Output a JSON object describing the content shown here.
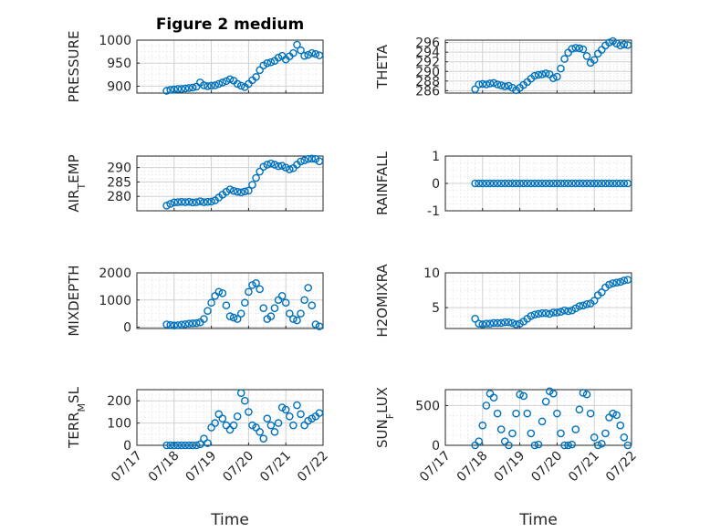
{
  "figure_title": "Figure 2 medium",
  "x_axis_label": "Time",
  "x_tick_labels": [
    "07/17",
    "07/18",
    "07/19",
    "07/20",
    "07/21",
    "07/22"
  ],
  "marker_color": "#0072bd",
  "chart_data": [
    {
      "type": "scatter",
      "name": "PRESSURE",
      "ylabel": "PRESSURE",
      "ylim": [
        885,
        1000
      ],
      "yticks": [
        900,
        950,
        1000
      ],
      "title": "Figure 2 medium",
      "xlabel": "",
      "x": [
        17.8,
        17.9,
        18.0,
        18.1,
        18.2,
        18.3,
        18.4,
        18.5,
        18.6,
        18.7,
        18.8,
        18.9,
        19.0,
        19.1,
        19.2,
        19.3,
        19.4,
        19.5,
        19.6,
        19.7,
        19.8,
        19.9,
        20.0,
        20.1,
        20.2,
        20.3,
        20.4,
        20.5,
        20.6,
        20.7,
        20.8,
        20.9,
        21.0,
        21.1,
        21.2,
        21.3,
        21.4,
        21.5,
        21.6,
        21.7,
        21.8,
        21.9
      ],
      "y": [
        890,
        892,
        893,
        894,
        894,
        895,
        896,
        897,
        899,
        908,
        902,
        900,
        901,
        902,
        905,
        908,
        911,
        915,
        912,
        905,
        901,
        898,
        905,
        913,
        920,
        935,
        945,
        950,
        952,
        955,
        962,
        966,
        958,
        965,
        972,
        990,
        978,
        966,
        968,
        972,
        970,
        967
      ]
    },
    {
      "type": "scatter",
      "name": "THETA",
      "ylabel": "THETA",
      "ylim": [
        285.5,
        296.5
      ],
      "yticks": [
        286,
        288,
        290,
        292,
        294,
        296
      ],
      "x": [
        17.8,
        17.9,
        18.0,
        18.1,
        18.2,
        18.3,
        18.4,
        18.5,
        18.6,
        18.7,
        18.8,
        18.9,
        19.0,
        19.1,
        19.2,
        19.3,
        19.4,
        19.5,
        19.6,
        19.7,
        19.8,
        19.9,
        20.0,
        20.1,
        20.2,
        20.3,
        20.4,
        20.5,
        20.6,
        20.7,
        20.8,
        20.9,
        21.0,
        21.1,
        21.2,
        21.3,
        21.4,
        21.5,
        21.6,
        21.7,
        21.8,
        21.9
      ],
      "y": [
        286.3,
        287.3,
        287.4,
        287.3,
        287.5,
        287.6,
        287.3,
        287.1,
        286.9,
        287.0,
        286.6,
        286.1,
        286.6,
        287.2,
        287.8,
        288.5,
        289.1,
        289.3,
        289.4,
        289.6,
        289.4,
        288.6,
        288.9,
        290.6,
        292.6,
        293.9,
        294.7,
        294.9,
        294.8,
        294.6,
        293.2,
        291.8,
        292.4,
        293.7,
        294.5,
        295.4,
        296.0,
        296.3,
        295.8,
        295.4,
        295.6,
        295.5
      ]
    },
    {
      "type": "scatter",
      "name": "AIR_TEMP",
      "ylabel": "AIR_TEMP",
      "ylim": [
        275,
        294
      ],
      "yticks": [
        280,
        285,
        290
      ],
      "x": [
        17.8,
        17.9,
        18.0,
        18.1,
        18.2,
        18.3,
        18.4,
        18.5,
        18.6,
        18.7,
        18.8,
        18.9,
        19.0,
        19.1,
        19.2,
        19.3,
        19.4,
        19.5,
        19.6,
        19.7,
        19.8,
        19.9,
        20.0,
        20.1,
        20.2,
        20.3,
        20.4,
        20.5,
        20.6,
        20.7,
        20.8,
        20.9,
        21.0,
        21.1,
        21.2,
        21.3,
        21.4,
        21.5,
        21.6,
        21.7,
        21.8,
        21.9
      ],
      "y": [
        276.8,
        277.4,
        277.9,
        278.0,
        278.1,
        278.0,
        278.1,
        277.9,
        278.0,
        278.3,
        278.0,
        278.1,
        278.2,
        278.6,
        279.6,
        280.6,
        281.6,
        282.4,
        281.9,
        281.6,
        281.4,
        281.7,
        282.0,
        284.0,
        286.4,
        288.6,
        290.3,
        291.0,
        291.4,
        291.0,
        290.5,
        290.6,
        290.0,
        289.4,
        289.8,
        291.0,
        292.1,
        292.5,
        293.0,
        293.1,
        293.0,
        292.2
      ]
    },
    {
      "type": "scatter",
      "name": "RAINFALL",
      "ylabel": "RAINFALL",
      "ylim": [
        -1,
        1
      ],
      "yticks": [
        -1,
        0,
        1
      ],
      "x": [
        17.8,
        17.9,
        18.0,
        18.1,
        18.2,
        18.3,
        18.4,
        18.5,
        18.6,
        18.7,
        18.8,
        18.9,
        19.0,
        19.1,
        19.2,
        19.3,
        19.4,
        19.5,
        19.6,
        19.7,
        19.8,
        19.9,
        20.0,
        20.1,
        20.2,
        20.3,
        20.4,
        20.5,
        20.6,
        20.7,
        20.8,
        20.9,
        21.0,
        21.1,
        21.2,
        21.3,
        21.4,
        21.5,
        21.6,
        21.7,
        21.8,
        21.9
      ],
      "y": [
        0,
        0,
        0,
        0,
        0,
        0,
        0,
        0,
        0,
        0,
        0,
        0,
        0,
        0,
        0,
        0,
        0,
        0,
        0,
        0,
        0,
        0,
        0,
        0,
        0,
        0,
        0,
        0,
        0,
        0,
        0,
        0,
        0,
        0,
        0,
        0,
        0,
        0,
        0,
        0,
        0,
        0
      ]
    },
    {
      "type": "scatter",
      "name": "MIXDEPTH",
      "ylabel": "MIXDEPTH",
      "ylim": [
        -50,
        2000
      ],
      "yticks": [
        0,
        1000,
        2000
      ],
      "x": [
        17.8,
        17.9,
        18.0,
        18.1,
        18.2,
        18.3,
        18.4,
        18.5,
        18.6,
        18.7,
        18.8,
        18.9,
        19.0,
        19.1,
        19.2,
        19.3,
        19.4,
        19.5,
        19.6,
        19.7,
        19.8,
        19.9,
        20.0,
        20.1,
        20.2,
        20.3,
        20.4,
        20.5,
        20.6,
        20.7,
        20.8,
        20.9,
        21.0,
        21.1,
        21.2,
        21.3,
        21.4,
        21.5,
        21.6,
        21.7,
        21.8,
        21.9
      ],
      "y": [
        100,
        80,
        60,
        70,
        90,
        110,
        130,
        140,
        150,
        180,
        300,
        600,
        900,
        1150,
        1300,
        1250,
        800,
        400,
        350,
        300,
        500,
        900,
        1300,
        1550,
        1620,
        1400,
        700,
        300,
        400,
        700,
        1000,
        1150,
        900,
        500,
        300,
        250,
        500,
        1000,
        1450,
        800,
        100,
        30
      ]
    },
    {
      "type": "scatter",
      "name": "H2OMIXRA",
      "ylabel": "H2OMIXRA",
      "ylim": [
        2,
        10
      ],
      "yticks": [
        5,
        10
      ],
      "x": [
        17.8,
        17.9,
        18.0,
        18.1,
        18.2,
        18.3,
        18.4,
        18.5,
        18.6,
        18.7,
        18.8,
        18.9,
        19.0,
        19.1,
        19.2,
        19.3,
        19.4,
        19.5,
        19.6,
        19.7,
        19.8,
        19.9,
        20.0,
        20.1,
        20.2,
        20.3,
        20.4,
        20.5,
        20.6,
        20.7,
        20.8,
        20.9,
        21.0,
        21.1,
        21.2,
        21.3,
        21.4,
        21.5,
        21.6,
        21.7,
        21.8,
        21.9
      ],
      "y": [
        3.4,
        2.7,
        2.6,
        2.7,
        2.7,
        2.8,
        2.8,
        2.8,
        2.9,
        2.9,
        2.8,
        2.6,
        2.7,
        3.0,
        3.4,
        3.8,
        4.0,
        4.1,
        4.2,
        4.2,
        4.1,
        4.3,
        4.3,
        4.4,
        4.6,
        4.5,
        4.6,
        4.9,
        5.2,
        5.3,
        5.5,
        5.6,
        6.0,
        6.8,
        7.2,
        7.9,
        8.3,
        8.5,
        8.6,
        8.7,
        8.9,
        9.0
      ]
    },
    {
      "type": "scatter",
      "name": "TERR_MSL",
      "ylabel": "TERR_MSL",
      "ylim": [
        0,
        250
      ],
      "yticks": [
        0,
        100,
        200
      ],
      "x": [
        17.8,
        17.9,
        18.0,
        18.1,
        18.2,
        18.3,
        18.4,
        18.5,
        18.6,
        18.7,
        18.8,
        18.9,
        19.0,
        19.1,
        19.2,
        19.3,
        19.4,
        19.5,
        19.6,
        19.7,
        19.8,
        19.9,
        20.0,
        20.1,
        20.2,
        20.3,
        20.4,
        20.5,
        20.6,
        20.7,
        20.8,
        20.9,
        21.0,
        21.1,
        21.2,
        21.3,
        21.4,
        21.5,
        21.6,
        21.7,
        21.8,
        21.9
      ],
      "y": [
        0,
        0,
        0,
        0,
        0,
        0,
        0,
        0,
        0,
        5,
        30,
        10,
        80,
        100,
        140,
        120,
        90,
        70,
        90,
        130,
        235,
        200,
        150,
        90,
        80,
        60,
        30,
        120,
        90,
        60,
        100,
        170,
        160,
        130,
        90,
        180,
        140,
        90,
        110,
        120,
        130,
        145
      ]
    },
    {
      "type": "scatter",
      "name": "SUN_FLUX",
      "ylabel": "SUN_FLUX",
      "ylim": [
        0,
        700
      ],
      "yticks": [
        0,
        500
      ],
      "x": [
        17.8,
        17.9,
        18.0,
        18.1,
        18.2,
        18.3,
        18.4,
        18.5,
        18.6,
        18.7,
        18.8,
        18.9,
        19.0,
        19.1,
        19.2,
        19.3,
        19.4,
        19.5,
        19.6,
        19.7,
        19.8,
        19.9,
        20.0,
        20.1,
        20.2,
        20.3,
        20.4,
        20.5,
        20.6,
        20.7,
        20.8,
        20.9,
        21.0,
        21.1,
        21.2,
        21.3,
        21.4,
        21.5,
        21.6,
        21.7,
        21.8,
        21.9
      ],
      "y": [
        0,
        50,
        250,
        500,
        650,
        600,
        400,
        200,
        50,
        0,
        150,
        400,
        640,
        620,
        400,
        150,
        0,
        10,
        300,
        550,
        680,
        650,
        400,
        150,
        0,
        0,
        10,
        200,
        450,
        660,
        640,
        400,
        100,
        0,
        20,
        150,
        350,
        400,
        380,
        250,
        100,
        0
      ]
    }
  ]
}
